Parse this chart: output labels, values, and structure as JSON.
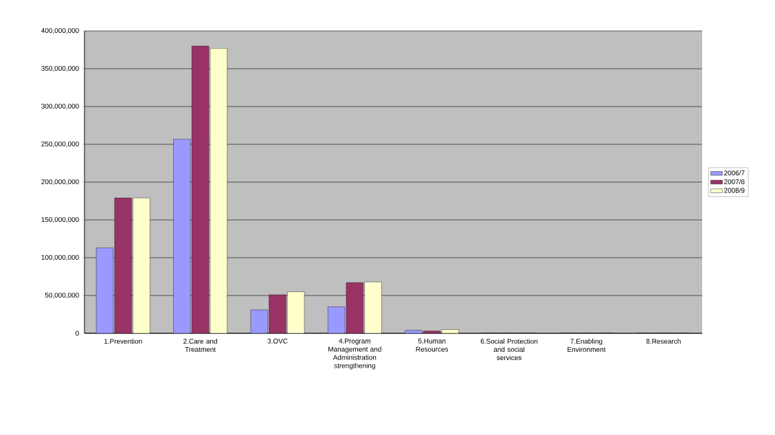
{
  "chart_data": {
    "type": "bar",
    "categories": [
      "1.Prevention",
      "2.Care and Treatment",
      "3.OVC",
      "4.Program Management and Administration strengthening",
      "5.Human Resources",
      "6.Social Protection and social services",
      "7.Enabling Environment",
      "8.Research"
    ],
    "series": [
      {
        "name": "2006/7",
        "color": "#9999ff",
        "values": [
          113000000,
          257000000,
          31000000,
          35000000,
          4000000,
          0,
          0,
          0
        ]
      },
      {
        "name": "2007/8",
        "color": "#993366",
        "values": [
          179000000,
          380000000,
          51000000,
          67000000,
          3000000,
          0,
          0,
          0
        ]
      },
      {
        "name": "2008/9",
        "color": "#ffffcc",
        "values": [
          179000000,
          377000000,
          55000000,
          68000000,
          5000000,
          0,
          0,
          0
        ]
      }
    ],
    "ylim": [
      0,
      400000000
    ],
    "yticks": [
      {
        "value": 0,
        "label": "0"
      },
      {
        "value": 50000000,
        "label": "50,000,000"
      },
      {
        "value": 100000000,
        "label": "100,000,000"
      },
      {
        "value": 150000000,
        "label": "150,000,000"
      },
      {
        "value": 200000000,
        "label": "200,000,000"
      },
      {
        "value": 250000000,
        "label": "250,000,000"
      },
      {
        "value": 300000000,
        "label": "300,000,000"
      },
      {
        "value": 350000000,
        "label": "350,000,000"
      },
      {
        "value": 400000000,
        "label": "400,000,000"
      }
    ],
    "grid": "y",
    "legend": "right"
  }
}
